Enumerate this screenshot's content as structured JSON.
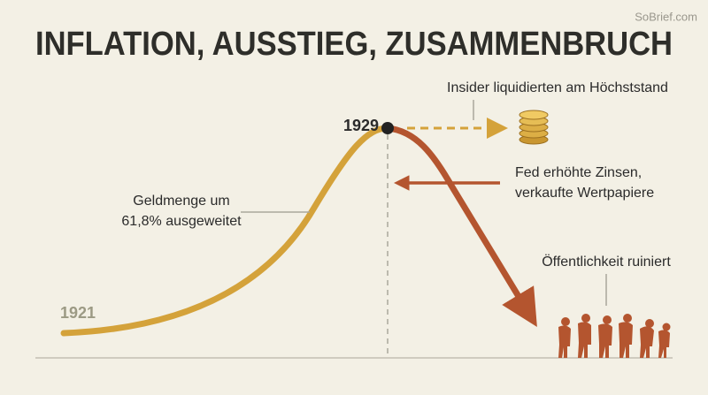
{
  "watermark": "SoBrief.com",
  "title": "INFLATION, AUSSTIEG, ZUSAMMENBRUCH",
  "years": {
    "start": "1921",
    "peak": "1929"
  },
  "annotations": {
    "money_supply": [
      "Geldmenge um",
      "61,8% ausgeweitet"
    ],
    "insiders": "Insider liquidierten am Höchststand",
    "fed": [
      "Fed erhöhte Zinsen,",
      "verkaufte Wertpapiere"
    ],
    "public": "Öffentlichkeit ruiniert"
  }
}
